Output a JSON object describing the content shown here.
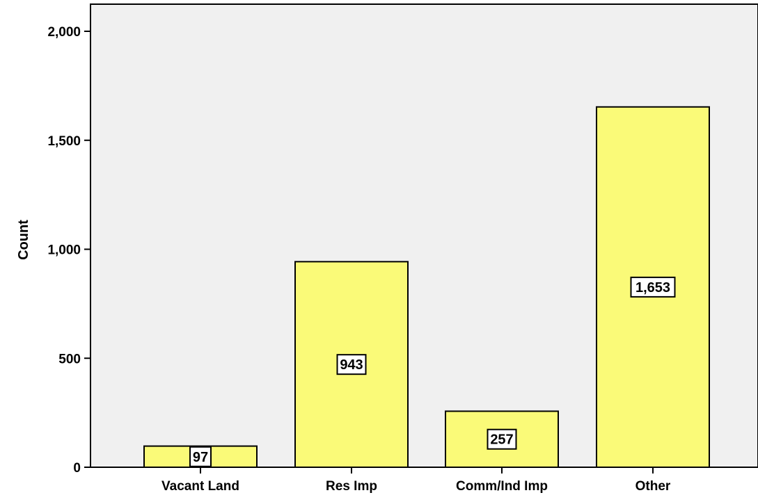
{
  "chart_data": {
    "type": "bar",
    "title": "",
    "xlabel": "",
    "ylabel": "Count",
    "ylim": [
      0,
      2000
    ],
    "yticks": [
      0,
      500,
      1000,
      1500,
      2000
    ],
    "ytick_labels": [
      "0",
      "500",
      "1,000",
      "1,500",
      "2,000"
    ],
    "categories": [
      "Vacant Land",
      "Res Imp",
      "Comm/Ind Imp",
      "Other"
    ],
    "values": [
      97,
      943,
      257,
      1653
    ],
    "data_labels": [
      "97",
      "943",
      "257",
      "1,653"
    ],
    "grid": false,
    "legend": "none",
    "colors": {
      "bar_fill": "#fafa78",
      "bar_stroke": "#000000",
      "plot_background": "#f0f0f0",
      "label_box_fill": "#ffffff"
    }
  }
}
